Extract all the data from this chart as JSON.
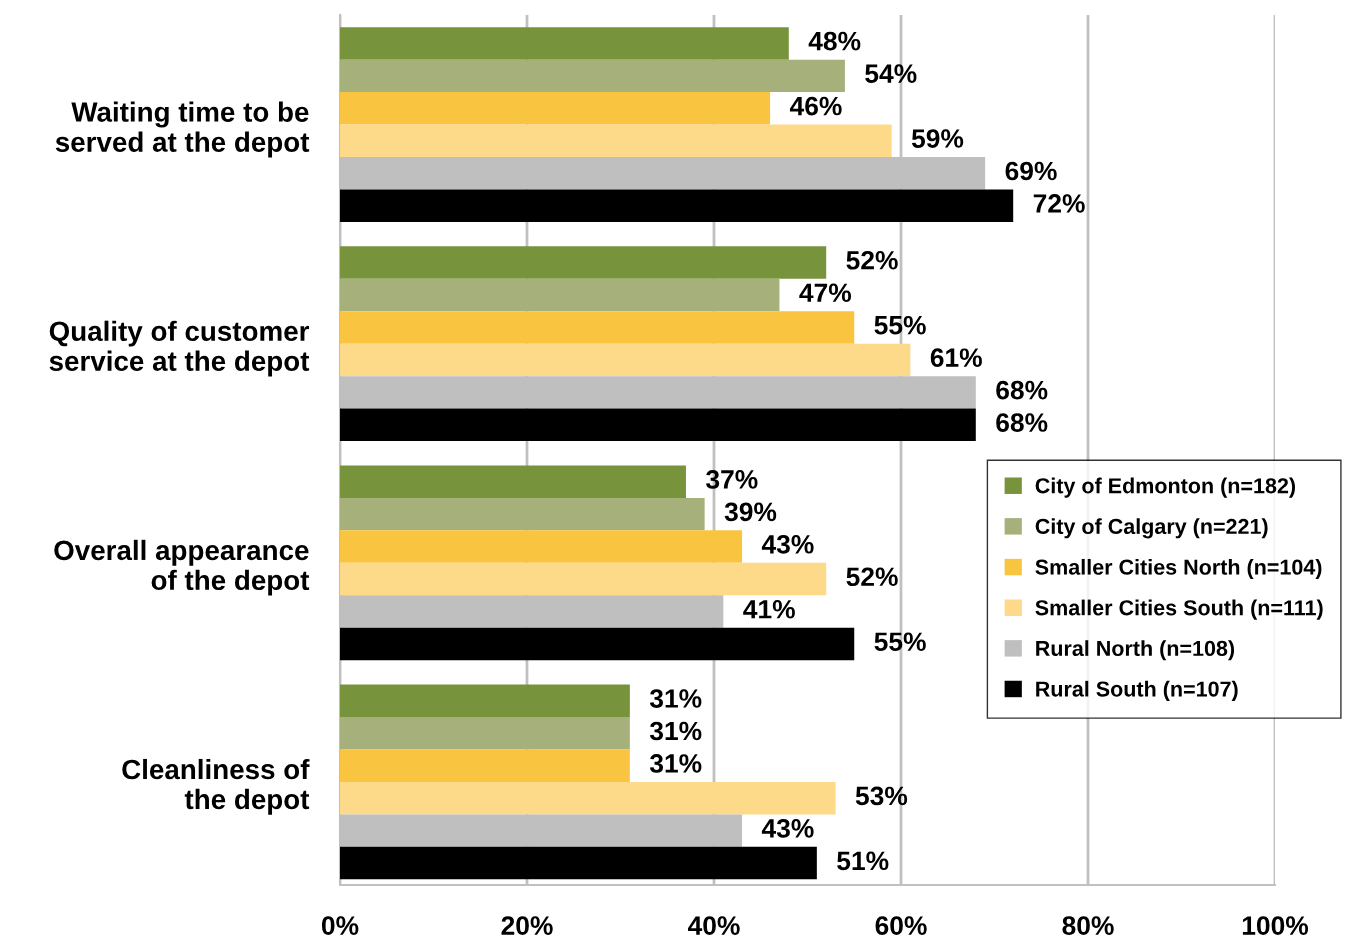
{
  "chart_data": {
    "type": "bar",
    "orientation": "horizontal",
    "categories": [
      "Waiting time to be\nserved at the depot",
      "Quality of customer\nservice at the depot",
      "Overall appearance\nof the depot",
      "Cleanliness of\nthe depot"
    ],
    "series": [
      {
        "name": "City of Edmonton (n=182)",
        "color": "#77933c",
        "values": [
          48,
          52,
          37,
          31
        ],
        "value_labels": [
          "48%",
          "52%",
          "37%",
          "31%"
        ]
      },
      {
        "name": "City of Calgary (n=221)",
        "color": "#a6b07b",
        "values": [
          54,
          47,
          39,
          31
        ],
        "value_labels": [
          "54%",
          "47%",
          "39%",
          "31%"
        ]
      },
      {
        "name": "Smaller Cities North (n=104)",
        "color": "#f9c440",
        "values": [
          46,
          55,
          43,
          31
        ],
        "value_labels": [
          "46%",
          "55%",
          "43%",
          "31%"
        ]
      },
      {
        "name": "Smaller Cities South (n=111)",
        "color": "#fdd98a",
        "values": [
          59,
          61,
          52,
          53
        ],
        "value_labels": [
          "59%",
          "61%",
          "52%",
          "53%"
        ]
      },
      {
        "name": "Rural North (n=108)",
        "color": "#bfbfbf",
        "values": [
          69,
          68,
          41,
          43
        ],
        "value_labels": [
          "69%",
          "68%",
          "41%",
          "43%"
        ]
      },
      {
        "name": "Rural South (n=107)",
        "color": "#000000",
        "values": [
          72,
          68,
          55,
          51
        ],
        "value_labels": [
          "72%",
          "68%",
          "55%",
          "51%"
        ]
      }
    ],
    "xlim": [
      0,
      100
    ],
    "xticks": [
      {
        "value": 0,
        "label": "0%"
      },
      {
        "value": 20,
        "label": "20%"
      },
      {
        "value": 40,
        "label": "40%"
      },
      {
        "value": 60,
        "label": "60%"
      },
      {
        "value": 80,
        "label": "80%"
      },
      {
        "value": 100,
        "label": "100%"
      }
    ],
    "grid": "x",
    "legend": "right"
  }
}
